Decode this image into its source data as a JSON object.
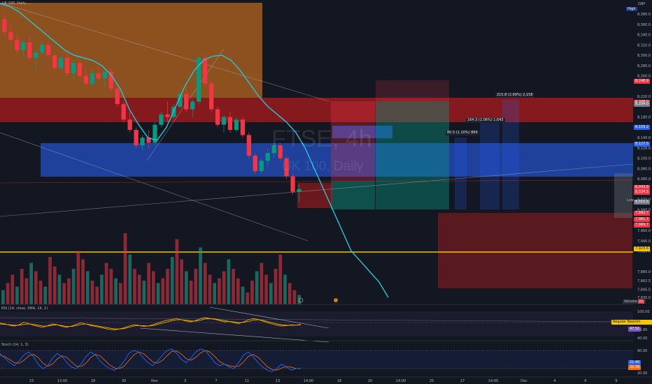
{
  "header": {
    "symbol_line": "UK 100, Daily, ...",
    "currency": "GBP",
    "high_label": "High"
  },
  "watermark": {
    "title": "FTSE, 4h",
    "subtitle": "UK 100, Daily"
  },
  "price_axis": {
    "ticks": [
      "8,380.0",
      "8,360.0",
      "8,340.0",
      "8,320.0",
      "8,300.0",
      "8,280.0",
      "8,260.0",
      "8,220.0",
      "8,180.0",
      "8,140.0",
      "8,120.0",
      "8,100.0",
      "8,080.0",
      "8,060.0",
      "8,020.0",
      "8,000.0",
      "7,960.0",
      "7,940.0",
      "7,920.0",
      "7,880.0",
      "7,862.5",
      "7,845.5",
      "7,830.0"
    ],
    "tags": [
      {
        "text": "8,248.9",
        "color": "#f23645",
        "price": 8248.9
      },
      {
        "text": "8,208.0",
        "color": "#f23645",
        "price": 8208
      },
      {
        "text": "8,204.0",
        "color": "#787b86",
        "price": 8204
      },
      {
        "text": "8,159.2",
        "color": "#2962ff",
        "price": 8159.2
      },
      {
        "text": "8,127.5",
        "color": "#2962ff",
        "price": 8127.5
      },
      {
        "text": "8,043.8",
        "color": "#f23645",
        "price": 8043.8
      },
      {
        "text": "8,034.5",
        "color": "#f23645",
        "price": 8034.5
      },
      {
        "text": "8,015.5",
        "color": "#787b86",
        "price": 8015.5
      },
      {
        "text": "7,992.7",
        "color": "#f23645",
        "price": 7992.7
      },
      {
        "text": "7,981.7",
        "color": "#f23645",
        "price": 7981.7
      },
      {
        "text": "7,969.7",
        "color": "#f23645",
        "price": 7969.7
      },
      {
        "text": "7,923.6",
        "color": "#f7c600",
        "price": 7923.6
      }
    ],
    "low_label": "Low",
    "volume_label": "Volume",
    "volume_value": "21"
  },
  "time_axis": [
    "23",
    "13:00",
    "28",
    "30",
    "Nov",
    "5",
    "7",
    "11",
    "13",
    "14:00",
    "18",
    "20",
    "14:00",
    "25",
    "27",
    "14:00",
    "Dec",
    "4",
    "6",
    "9"
  ],
  "measures": [
    {
      "text": "80.5 (1.10%) 889"
    },
    {
      "text": "164.3 (2.06%) 1,643"
    },
    {
      "text": "215.8 (2.69%) 2,158"
    }
  ],
  "rsi": {
    "label": "RSI (14, close, SMA, 14, 2)",
    "axis": [
      "100.00",
      "60.00",
      "40.00"
    ],
    "tags": [
      {
        "text": "Regular Bearish Label",
        "color": "#f23645"
      },
      {
        "text": "47.51",
        "color": "#7e57c2"
      },
      {
        "text": "51.44",
        "color": "#f7c600"
      }
    ],
    "series": [
      52,
      50,
      47,
      45,
      48,
      54,
      51,
      47,
      44,
      42,
      46,
      50,
      48,
      44,
      42,
      45,
      49,
      53,
      50,
      46,
      44,
      42,
      39,
      37,
      36,
      38,
      41,
      45,
      48,
      47,
      44,
      45,
      48,
      52,
      56,
      59,
      61,
      63,
      60,
      57,
      55,
      58,
      63,
      65,
      63,
      61,
      58,
      55,
      56,
      53,
      51,
      55,
      60,
      63,
      61,
      57,
      53,
      50,
      47,
      45,
      46,
      48,
      47,
      49
    ],
    "signal": [
      50,
      49,
      48,
      47,
      47,
      49,
      50,
      49,
      47,
      45,
      45,
      47,
      48,
      46,
      44,
      44,
      46,
      49,
      50,
      48,
      46,
      44,
      42,
      40,
      38,
      38,
      39,
      42,
      45,
      46,
      46,
      45,
      46,
      49,
      52,
      55,
      58,
      60,
      60,
      59,
      57,
      57,
      59,
      62,
      63,
      62,
      60,
      58,
      56,
      55,
      53,
      54,
      56,
      59,
      60,
      59,
      56,
      53,
      50,
      48,
      47,
      47,
      47,
      48
    ]
  },
  "stoch": {
    "label": "Stoch (14, 1, 3)",
    "axis": [
      "80.00",
      "20.00"
    ],
    "tags": [
      {
        "text": "21.40",
        "color": "#2962ff"
      },
      {
        "text": "20.56",
        "color": "#ff6d00"
      }
    ],
    "k": [
      70,
      55,
      40,
      30,
      45,
      65,
      75,
      60,
      35,
      20,
      30,
      55,
      70,
      60,
      40,
      25,
      20,
      35,
      60,
      75,
      65,
      45,
      30,
      20,
      15,
      25,
      45,
      70,
      80,
      75,
      55,
      40,
      30,
      45,
      65,
      80,
      85,
      70,
      50,
      40,
      55,
      75,
      85,
      80,
      60,
      40,
      30,
      35,
      25,
      20,
      40,
      65,
      75,
      60,
      40,
      25,
      15,
      10,
      20,
      35,
      25,
      15,
      20,
      21
    ],
    "d": [
      65,
      60,
      50,
      40,
      38,
      47,
      62,
      67,
      57,
      38,
      28,
      35,
      52,
      62,
      57,
      42,
      28,
      27,
      38,
      57,
      67,
      62,
      47,
      32,
      22,
      20,
      28,
      47,
      65,
      75,
      70,
      57,
      42,
      38,
      47,
      63,
      77,
      78,
      68,
      53,
      48,
      57,
      72,
      80,
      75,
      60,
      43,
      35,
      30,
      27,
      28,
      42,
      60,
      67,
      58,
      42,
      27,
      17,
      15,
      22,
      27,
      25,
      20,
      20
    ]
  },
  "volume": [
    12,
    18,
    25,
    15,
    30,
    22,
    35,
    28,
    20,
    15,
    40,
    32,
    25,
    18,
    22,
    30,
    45,
    38,
    28,
    20,
    15,
    25,
    35,
    30,
    22,
    18,
    60,
    42,
    30,
    25,
    20,
    35,
    28,
    18,
    22,
    30,
    40,
    55,
    38,
    28,
    20,
    30,
    48,
    35,
    25,
    18,
    22,
    28,
    38,
    30,
    22,
    15,
    10,
    20,
    28,
    35,
    25,
    18,
    30,
    42,
    25,
    18,
    12,
    8
  ],
  "candles": [
    [
      8370,
      8380,
      8340,
      8345
    ],
    [
      8345,
      8360,
      8320,
      8330
    ],
    [
      8330,
      8340,
      8300,
      8310
    ],
    [
      8310,
      8330,
      8295,
      8325
    ],
    [
      8325,
      8335,
      8290,
      8295
    ],
    [
      8295,
      8310,
      8270,
      8305
    ],
    [
      8305,
      8325,
      8300,
      8320
    ],
    [
      8320,
      8330,
      8295,
      8300
    ],
    [
      8300,
      8305,
      8270,
      8275
    ],
    [
      8275,
      8300,
      8270,
      8295
    ],
    [
      8295,
      8310,
      8260,
      8265
    ],
    [
      8265,
      8290,
      8250,
      8285
    ],
    [
      8285,
      8290,
      8255,
      8260
    ],
    [
      8260,
      8275,
      8240,
      8245
    ],
    [
      8245,
      8270,
      8240,
      8265
    ],
    [
      8265,
      8280,
      8250,
      8255
    ],
    [
      8255,
      8270,
      8240,
      8268
    ],
    [
      8268,
      8275,
      8230,
      8235
    ],
    [
      8235,
      8240,
      8200,
      8205
    ],
    [
      8205,
      8210,
      8170,
      8175
    ],
    [
      8175,
      8190,
      8150,
      8155
    ],
    [
      8155,
      8160,
      8120,
      8125
    ],
    [
      8125,
      8145,
      8115,
      8140
    ],
    [
      8140,
      8155,
      8120,
      8130
    ],
    [
      8130,
      8170,
      8125,
      8165
    ],
    [
      8165,
      8190,
      8160,
      8185
    ],
    [
      8185,
      8210,
      8170,
      8180
    ],
    [
      8180,
      8205,
      8175,
      8200
    ],
    [
      8200,
      8230,
      8195,
      8225
    ],
    [
      8225,
      8240,
      8190,
      8195
    ],
    [
      8195,
      8215,
      8180,
      8210
    ],
    [
      8210,
      8300,
      8205,
      8295
    ],
    [
      8295,
      8300,
      8240,
      8245
    ],
    [
      8245,
      8250,
      8190,
      8195
    ],
    [
      8195,
      8200,
      8160,
      8165
    ],
    [
      8165,
      8185,
      8150,
      8180
    ],
    [
      8180,
      8190,
      8150,
      8155
    ],
    [
      8155,
      8180,
      8150,
      8175
    ],
    [
      8175,
      8180,
      8140,
      8145
    ],
    [
      8145,
      8150,
      8100,
      8105
    ],
    [
      8105,
      8110,
      8070,
      8075
    ],
    [
      8075,
      8100,
      8070,
      8095
    ],
    [
      8095,
      8120,
      8085,
      8110
    ],
    [
      8110,
      8130,
      8100,
      8125
    ],
    [
      8125,
      8130,
      8095,
      8100
    ],
    [
      8100,
      8105,
      8060,
      8065
    ],
    [
      8065,
      8070,
      8030,
      8035
    ],
    [
      8035,
      8050,
      8015,
      8040
    ]
  ],
  "ema_curve": [
    8400,
    8395,
    8385,
    8370,
    8355,
    8340,
    8325,
    8310,
    8300,
    8295,
    8290,
    8280,
    8262,
    8235,
    8195,
    8165,
    8140,
    8135,
    8160,
    8200,
    8240,
    8270,
    8290,
    8298,
    8300,
    8290,
    8270,
    8245,
    8220,
    8200,
    8185,
    8170,
    8150,
    8120,
    8080,
    8040,
    8000,
    7960,
    7920,
    7900,
    7880,
    7860,
    7830
  ]
}
